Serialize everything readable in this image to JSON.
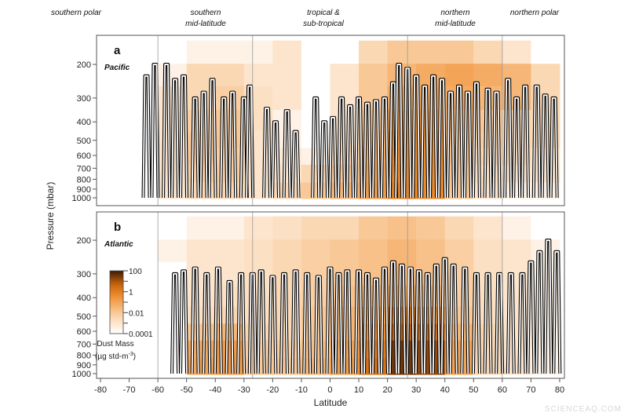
{
  "chart_data": {
    "type": "heatmap",
    "regions": [
      {
        "label_lines": [
          "southern polar"
        ]
      },
      {
        "label_lines": [
          "southern",
          "mid-latitude"
        ]
      },
      {
        "label_lines": [
          "tropical &",
          "sub-tropical"
        ]
      },
      {
        "label_lines": [
          "northern",
          "mid-latitude"
        ]
      },
      {
        "label_lines": [
          "northern polar"
        ]
      }
    ],
    "region_boundaries_lat": [
      -60,
      -27,
      27,
      60
    ],
    "xlabel": "Latitude",
    "ylabel": "Pressure (mbar)",
    "xlim": [
      -80,
      80
    ],
    "x_ticks": [
      "-80",
      "-70",
      "-60",
      "-50",
      "-40",
      "-30",
      "-20",
      "-10",
      "0",
      "10",
      "20",
      "30",
      "40",
      "50",
      "60",
      "70",
      "80"
    ],
    "ylim": [
      150,
      1000
    ],
    "y_scale": "log",
    "y_ticks": [
      "200",
      "300",
      "400",
      "500",
      "600",
      "700",
      "800",
      "900",
      "1000"
    ],
    "colorbar": {
      "title": "Dust Mass",
      "units": "(µg std-m",
      "units_sup": "-3",
      "units_close": ")",
      "ticks": [
        "100",
        "1",
        "0.01",
        "0.0001"
      ],
      "scale": "log",
      "range": [
        0.0001,
        100
      ],
      "colors": [
        "#ffffff",
        "#fbd3aa",
        "#ef8a2a",
        "#c25f0a",
        "#3a1a06"
      ]
    },
    "lat_bins_start": [
      -60,
      -50,
      -40,
      -30,
      -20,
      -10,
      0,
      10,
      20,
      30,
      40,
      50,
      60,
      70
    ],
    "lat_bin_width": 10,
    "pressure_levels": [
      175,
      225,
      300,
      400,
      500,
      600,
      750,
      925
    ],
    "value_units": "log10 dust mass (µg std-m-3)",
    "panels": [
      {
        "letter": "a",
        "name": "Pacific",
        "log10_dust": [
          [
            -4,
            -3.5,
            -3.5,
            -3.5,
            -3,
            -4,
            -4,
            -2.5,
            -2,
            -2,
            -2,
            -2.5,
            -3,
            -4
          ],
          [
            -3.5,
            -2.5,
            -2.5,
            -3,
            -3,
            -4,
            -3,
            -2,
            -1.5,
            -1.2,
            -1,
            -1.2,
            -1.5,
            -2.5
          ],
          [
            -3,
            -2.5,
            -2.2,
            -2.8,
            -3,
            -4,
            -3,
            -2,
            -1.2,
            -1,
            -1.2,
            -1.5,
            -1.5,
            -2.5
          ],
          [
            -3,
            -2.2,
            -2,
            -2.8,
            -3.5,
            -4,
            -3,
            -1.8,
            -0.8,
            -0.7,
            -1.5,
            -2,
            -2.5,
            -2.5
          ],
          [
            -3,
            -2,
            -2,
            -3,
            -3.5,
            -4,
            -2.8,
            -1.5,
            -0.5,
            -0.5,
            -1.8,
            -2.2,
            -2.5,
            -2.5
          ],
          [
            -3,
            -2,
            -2.2,
            -3,
            -3.2,
            -3.5,
            -2.5,
            -1.2,
            -0.3,
            -0.4,
            -1.8,
            -2.5,
            -2.5,
            -3
          ],
          [
            -3,
            -2.2,
            -2.2,
            -3,
            -3,
            -2.5,
            -2,
            -1,
            -0.2,
            -0.4,
            -2,
            -2.8,
            -3,
            -3
          ],
          [
            -3,
            -2.5,
            -2.5,
            -3,
            -2.5,
            -2,
            -1.5,
            -0.8,
            0,
            -0.3,
            -2,
            -3,
            -3.5,
            -3.5
          ]
        ],
        "flight_profiles": [
          [
            -64,
            230
          ],
          [
            -61,
            200
          ],
          [
            -57,
            200
          ],
          [
            -54,
            240
          ],
          [
            -51,
            230
          ],
          [
            -47,
            300
          ],
          [
            -44,
            280
          ],
          [
            -41,
            240
          ],
          [
            -37,
            300
          ],
          [
            -34,
            280
          ],
          [
            -30,
            300
          ],
          [
            -28,
            260
          ],
          [
            -22,
            340
          ],
          [
            -19,
            400
          ],
          [
            -15,
            350
          ],
          [
            -12,
            450
          ],
          [
            -5,
            300
          ],
          [
            -2,
            400
          ],
          [
            1,
            380
          ],
          [
            4,
            300
          ],
          [
            7,
            330
          ],
          [
            10,
            300
          ],
          [
            13,
            320
          ],
          [
            16,
            310
          ],
          [
            19,
            300
          ],
          [
            22,
            250
          ],
          [
            24,
            200
          ],
          [
            27,
            210
          ],
          [
            30,
            230
          ],
          [
            33,
            260
          ],
          [
            36,
            230
          ],
          [
            39,
            240
          ],
          [
            42,
            280
          ],
          [
            45,
            260
          ],
          [
            48,
            280
          ],
          [
            51,
            250
          ],
          [
            55,
            270
          ],
          [
            58,
            280
          ],
          [
            62,
            240
          ],
          [
            65,
            300
          ],
          [
            68,
            260
          ],
          [
            72,
            260
          ],
          [
            75,
            290
          ],
          [
            78,
            300
          ]
        ]
      },
      {
        "letter": "b",
        "name": "Atlantic",
        "log10_dust": [
          [
            -4,
            -3.5,
            -3.5,
            -3,
            -2.8,
            -2.5,
            -2.5,
            -2,
            -1.8,
            -2,
            -2.5,
            -3,
            -3.5,
            -4
          ],
          [
            -3.5,
            -3,
            -3,
            -2.8,
            -2.5,
            -2.2,
            -2,
            -1.8,
            -1.5,
            -1.8,
            -2.2,
            -2.8,
            -3,
            -3.5
          ],
          [
            -4,
            -3,
            -3,
            -2.8,
            -2.5,
            -2.2,
            -2,
            -1.8,
            -1.5,
            -1.8,
            -2.2,
            -2.8,
            -3,
            -3.5
          ],
          [
            -4,
            -3,
            -2.8,
            -2.8,
            -2.5,
            -2.2,
            -1.8,
            -1.5,
            -1,
            -1.5,
            -2.2,
            -2.8,
            -3,
            -3.5
          ],
          [
            -4,
            -2.8,
            -2.5,
            -2.8,
            -2.5,
            -2,
            -1.5,
            -1,
            0,
            -0.5,
            -2,
            -2.8,
            -3,
            -3.5
          ],
          [
            -4,
            -2,
            -1.5,
            -2.5,
            -2.5,
            -2,
            -1.5,
            -0.5,
            0.8,
            0.5,
            -1.5,
            -2.5,
            -3,
            -3.5
          ],
          [
            -4,
            -1.2,
            -0.8,
            -2.2,
            -2.2,
            -1.8,
            -1,
            0,
            1.5,
            1.2,
            -1,
            -2.5,
            -3,
            -3.5
          ],
          [
            -4,
            -1,
            -0.8,
            -2,
            -2,
            -1.5,
            -0.8,
            0.3,
            1.5,
            1.2,
            -1,
            -2.5,
            -3,
            -3.5
          ]
        ],
        "flight_profiles": [
          [
            -54,
            300
          ],
          [
            -51,
            290
          ],
          [
            -47,
            280
          ],
          [
            -43,
            300
          ],
          [
            -39,
            280
          ],
          [
            -35,
            330
          ],
          [
            -31,
            300
          ],
          [
            -27,
            300
          ],
          [
            -24,
            290
          ],
          [
            -20,
            310
          ],
          [
            -16,
            300
          ],
          [
            -12,
            290
          ],
          [
            -8,
            300
          ],
          [
            -4,
            310
          ],
          [
            0,
            280
          ],
          [
            3,
            300
          ],
          [
            6,
            290
          ],
          [
            10,
            290
          ],
          [
            13,
            300
          ],
          [
            16,
            320
          ],
          [
            19,
            280
          ],
          [
            22,
            260
          ],
          [
            25,
            270
          ],
          [
            28,
            280
          ],
          [
            31,
            290
          ],
          [
            34,
            300
          ],
          [
            37,
            270
          ],
          [
            40,
            250
          ],
          [
            43,
            270
          ],
          [
            47,
            280
          ],
          [
            51,
            300
          ],
          [
            55,
            300
          ],
          [
            59,
            300
          ],
          [
            63,
            300
          ],
          [
            67,
            300
          ],
          [
            70,
            260
          ],
          [
            73,
            230
          ],
          [
            76,
            200
          ],
          [
            79,
            230
          ]
        ]
      }
    ]
  },
  "watermark": "SCIENCEAQ.COM"
}
